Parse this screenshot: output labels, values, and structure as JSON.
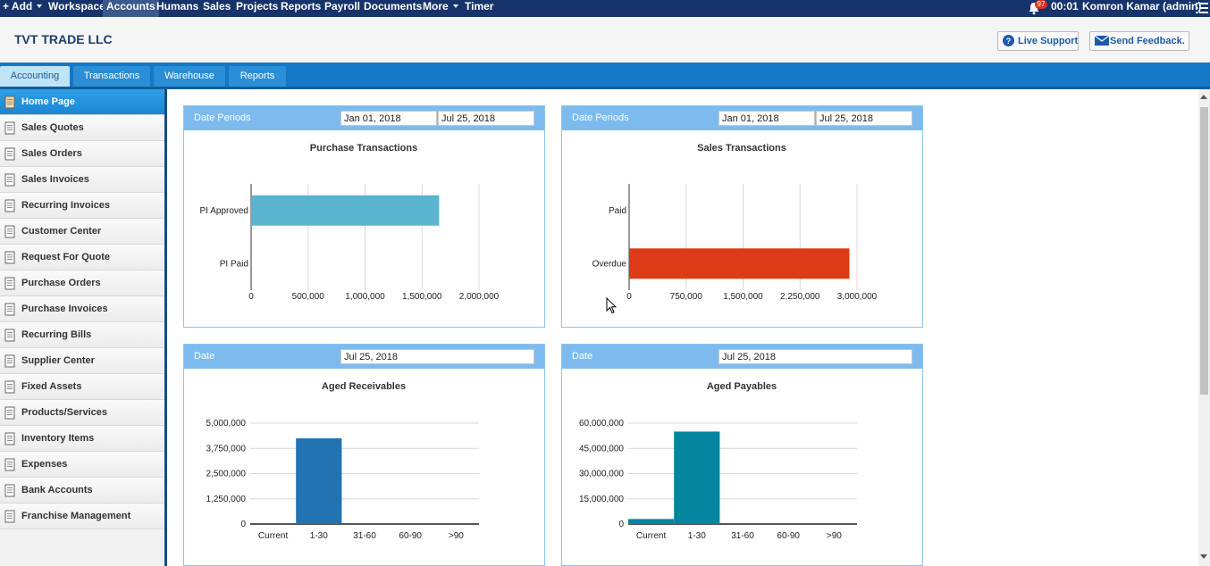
{
  "topnav": {
    "add": "+ Add",
    "items": [
      "Workspace",
      "Accounts",
      "Humans",
      "Sales",
      "Projects",
      "Reports",
      "Payroll",
      "Documents"
    ],
    "more": "More",
    "timer": "Timer",
    "notifications": "97",
    "clock": "00:01",
    "user": "Komron Kamar (admin)"
  },
  "header": {
    "company": "TVT TRADE LLC",
    "live_support": "Live Support",
    "feedback": "Send Feedback."
  },
  "tabs": [
    "Accounting",
    "Transactions",
    "Warehouse",
    "Reports"
  ],
  "sidebar": {
    "items": [
      "Home Page",
      "Sales Quotes",
      "Sales Orders",
      "Sales Invoices",
      "Recurring Invoices",
      "Customer Center",
      "Request For Quote",
      "Purchase Orders",
      "Purchase Invoices",
      "Recurring Bills",
      "Supplier Center",
      "Fixed Assets",
      "Products/Services",
      "Inventory Items",
      "Expenses",
      "Bank Accounts",
      "Franchise Management"
    ]
  },
  "panels": [
    {
      "label": "Date Periods",
      "from": "Jan 01, 2018",
      "to": "Jul 25, 2018"
    },
    {
      "label": "Date Periods",
      "from": "Jan 01, 2018",
      "to": "Jul 25, 2018"
    },
    {
      "label": "Date",
      "from": "Jul 25, 2018"
    },
    {
      "label": "Date",
      "from": "Jul 25, 2018"
    }
  ],
  "colors": {
    "nav": "#16346b",
    "tabbar": "#1379c6",
    "panel_head": "#7dbbef",
    "purchase_bar": "#5ab4d0",
    "sales_bar": "#dd3a16",
    "receivables_bar": "#2173b2",
    "payables_bar": "#0585a0"
  },
  "chart_data": [
    {
      "type": "bar",
      "orientation": "horizontal",
      "title": "Purchase Transactions",
      "categories": [
        "PI Approved",
        "PI Paid"
      ],
      "values": [
        1650000,
        0
      ],
      "xlim": [
        0,
        2000000
      ],
      "ticks": [
        "0",
        "500,000",
        "1,000,000",
        "1,500,000",
        "2,000,000"
      ],
      "tick_values": [
        0,
        500000,
        1000000,
        1500000,
        2000000
      ],
      "grid": true
    },
    {
      "type": "bar",
      "orientation": "horizontal",
      "title": "Sales Transactions",
      "categories": [
        "Paid",
        "Overdue"
      ],
      "values": [
        0,
        2900000
      ],
      "xlim": [
        0,
        3000000
      ],
      "ticks": [
        "0",
        "750,000",
        "1,500,000",
        "2,250,000",
        "3,000,000"
      ],
      "tick_values": [
        0,
        750000,
        1500000,
        2250000,
        3000000
      ],
      "grid": true
    },
    {
      "type": "bar",
      "title": "Aged Receivables",
      "categories": [
        "Current",
        "1-30",
        "31-60",
        "60-90",
        ">90"
      ],
      "values": [
        0,
        4250000,
        0,
        0,
        0
      ],
      "ylim": [
        0,
        5000000
      ],
      "ticks": [
        "0",
        "1,250,000",
        "2,500,000",
        "3,750,000",
        "5,000,000"
      ],
      "tick_values": [
        0,
        1250000,
        2500000,
        3750000,
        5000000
      ],
      "grid": true
    },
    {
      "type": "bar",
      "title": "Aged Payables",
      "categories": [
        "Current",
        "1-30",
        "31-60",
        "60-90",
        ">90"
      ],
      "values": [
        3000000,
        55000000,
        0,
        0,
        0
      ],
      "ylim": [
        0,
        60000000
      ],
      "ticks": [
        "0",
        "15,000,000",
        "30,000,000",
        "45,000,000",
        "60,000,000"
      ],
      "tick_values": [
        0,
        15000000,
        30000000,
        45000000,
        60000000
      ],
      "grid": true
    }
  ]
}
